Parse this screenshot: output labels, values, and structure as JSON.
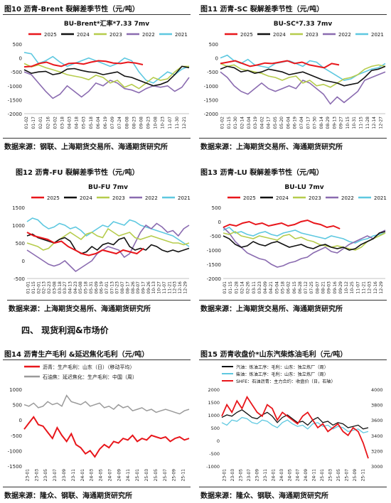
{
  "section_heading": "四、   现货利润&市场价",
  "panels": [
    {
      "title": "图10   沥青-Brent 裂解差季节性（元/吨）",
      "source": "数据来源：钢联、上海期货交易所、海通期货研究所"
    },
    {
      "title": "图11   沥青-SC 裂解差季节性（元/吨）",
      "source": "数据来源：上海期货交易所、海通期货研究所"
    },
    {
      "title": "图12   沥青-FU 裂解差季节性（元/吨）",
      "source": "数据来源：上海期货交易所、海通期货研究所"
    },
    {
      "title": "图13   沥青-LU 裂解差季节性（元/吨）",
      "source": "数据来源：上海期货交易所、海通期货研究所"
    },
    {
      "title": "图14   沥青生产毛利 &延迟焦化毛利（元/吨）",
      "source": "数据来源：隆众、钢联、海通期货研究所"
    },
    {
      "title": "图15   沥青收盘价*山东汽柴炼油毛利（元/吨）",
      "source": "数据来源：隆众、钢联、海通期货研究所"
    }
  ],
  "colors": {
    "2025": "#e8161b",
    "2024": "#111111",
    "2023": "#b6cc4c",
    "2022": "#8a6bb0",
    "2021": "#5ec8e0",
    "gray": "#9a9a9a"
  },
  "chart_data": [
    {
      "type": "line",
      "title": "BU-Brent*汇率*7.33 7mv",
      "ylim": [
        -2000,
        500
      ],
      "yticks": [
        500,
        0,
        -500,
        -1000,
        -1500,
        -2000
      ],
      "xticks": [
        "01-02",
        "01-17",
        "02-01",
        "02-16",
        "03-02",
        "03-18",
        "04-03",
        "04-18",
        "05-03",
        "05-18",
        "06-04",
        "06-19",
        "07-09",
        "07-24",
        "08-08",
        "08-23",
        "09-08",
        "09-23",
        "10-08",
        "10-23",
        "11-07",
        "11-30",
        "12-21"
      ],
      "series": [
        {
          "name": "2025",
          "values": [
            -320,
            -300,
            -200,
            -150,
            -250,
            -300,
            -200,
            -180,
            -220,
            -150,
            -100,
            -120,
            -180,
            -200,
            -150,
            -180,
            -240
          ]
        },
        {
          "name": "2024",
          "values": [
            -420,
            -550,
            -500,
            -480,
            -600,
            -550,
            -400,
            -380,
            -450,
            -500,
            -520,
            -600,
            -550,
            -500,
            -650,
            -700,
            -800,
            -900,
            -1000,
            -950,
            -850,
            -600,
            -300,
            -350
          ]
        },
        {
          "name": "2023",
          "values": [
            -200,
            -320,
            -250,
            -350,
            -420,
            -500,
            -600,
            -650,
            -700,
            -780,
            -620,
            -700,
            -900,
            -800,
            -1050,
            -950,
            -1100,
            -900,
            -700,
            -800,
            -750,
            -500,
            -300,
            -300
          ]
        },
        {
          "name": "2022",
          "values": [
            -500,
            -600,
            -900,
            -1200,
            -1450,
            -1300,
            -1000,
            -1200,
            -1400,
            -1200,
            -900,
            -1000,
            -800,
            -900,
            -1100,
            -1150,
            -1250,
            -1100,
            -1000,
            -1050,
            -1000,
            -1200,
            -1050,
            -700
          ]
        },
        {
          "name": "2021",
          "values": [
            200,
            150,
            -200,
            -100,
            50,
            -150,
            -300,
            -200,
            -100,
            0,
            -100,
            -200,
            -300,
            -200,
            0,
            -100,
            -500,
            -800,
            -900,
            -700,
            -500,
            -600,
            -400,
            -300
          ]
        }
      ]
    },
    {
      "type": "line",
      "title": "BU-SC*7.33 7mv",
      "ylim": [
        -2000,
        500
      ],
      "yticks": [
        500,
        0,
        -500,
        -1000,
        -1500,
        -2000
      ],
      "xticks": [
        "01-02",
        "01-15",
        "01-30",
        "02-14",
        "03-04",
        "03-19",
        "04-02",
        "04-17",
        "05-05",
        "05-20",
        "06-04",
        "06-19",
        "07-04",
        "07-17",
        "07-30",
        "08-14",
        "08-29",
        "09-13",
        "09-27",
        "10-15",
        "10-31",
        "11-15",
        "11-28",
        "12-14",
        "12-27"
      ],
      "series": [
        {
          "name": "2025",
          "values": [
            -200,
            -150,
            -100,
            -200,
            -300,
            -250,
            -180,
            -200,
            -150,
            -100,
            -200,
            -150,
            -250,
            -300,
            -350,
            -200,
            -250
          ]
        },
        {
          "name": "2024",
          "values": [
            -400,
            -300,
            -350,
            -500,
            -450,
            -550,
            -500,
            -400,
            -450,
            -500,
            -600,
            -550,
            -500,
            -600,
            -700,
            -800,
            -850,
            -900,
            -1000,
            -950,
            -900,
            -700,
            -450,
            -400,
            -300
          ]
        },
        {
          "name": "2023",
          "values": [
            -200,
            -300,
            -250,
            -400,
            -450,
            -500,
            -550,
            -650,
            -700,
            -800,
            -700,
            -650,
            -900,
            -800,
            -1000,
            -950,
            -1050,
            -900,
            -750,
            -700,
            -600,
            -400,
            -300,
            -250,
            -300
          ]
        },
        {
          "name": "2022",
          "values": [
            -500,
            -700,
            -1000,
            -1200,
            -1300,
            -1100,
            -900,
            -1100,
            -1200,
            -1100,
            -1000,
            -1100,
            -800,
            -900,
            -1100,
            -1300,
            -1650,
            -1400,
            -1600,
            -1400,
            -1200,
            -800,
            -700,
            -600,
            -500
          ]
        },
        {
          "name": "2021",
          "values": [
            0,
            100,
            -100,
            -200,
            -50,
            -250,
            -300,
            -350,
            -200,
            -150,
            -100,
            -200,
            -300,
            -100,
            -150,
            -350,
            -500,
            -650,
            -800,
            -750,
            -600,
            -500,
            -400,
            -350,
            -200
          ]
        }
      ]
    },
    {
      "type": "line",
      "title": "BU-FU 7mv",
      "ylim": [
        -500,
        1500
      ],
      "yticks": [
        1500,
        1000,
        500,
        0,
        -500
      ],
      "xticks": [
        "01-01",
        "01-15",
        "02-01",
        "02-13",
        "02-23",
        "03-08",
        "03-18",
        "03-27",
        "04-13",
        "04-23",
        "05-08",
        "05-18",
        "05-31",
        "06-09",
        "06-19",
        "07-01",
        "07-13",
        "07-23",
        "08-07",
        "08-17",
        "08-26",
        "09-07",
        "09-17",
        "09-26",
        "10-13",
        "10-27",
        "11-07",
        "11-21",
        "12-03",
        "12-16",
        "12-29"
      ],
      "series": [
        {
          "name": "2025",
          "values": [
            800,
            700,
            650,
            600,
            500,
            550,
            400,
            300,
            200,
            150,
            200,
            300,
            250,
            200,
            300,
            250,
            200,
            350
          ]
        },
        {
          "name": "2024",
          "values": [
            700,
            750,
            650,
            600,
            550,
            500,
            600,
            650,
            550,
            300,
            200,
            250,
            400,
            300,
            450,
            500,
            450,
            600,
            650,
            400,
            300,
            350,
            300,
            450,
            400,
            300,
            250,
            300,
            250,
            300,
            350
          ]
        },
        {
          "name": "2023",
          "values": [
            500,
            450,
            400,
            300,
            350,
            500,
            600,
            700,
            800,
            700,
            600,
            750,
            800,
            700,
            650,
            900,
            800,
            700,
            750,
            800,
            650,
            600,
            650,
            700,
            650,
            600,
            550,
            500,
            500,
            450,
            500
          ]
        },
        {
          "name": "2022",
          "values": [
            300,
            200,
            100,
            0,
            -100,
            -150,
            -100,
            0,
            -150,
            -300,
            -200,
            -100,
            0,
            200,
            300,
            400,
            350,
            300,
            100,
            200,
            500,
            800,
            1000,
            900,
            1050,
            950,
            800,
            850,
            700,
            900,
            1000
          ]
        },
        {
          "name": "2021",
          "values": [
            1100,
            1200,
            1150,
            1000,
            900,
            950,
            1050,
            1000,
            900,
            950,
            850,
            700,
            800,
            900,
            1000,
            950,
            1100,
            1050,
            1000,
            1150,
            1100,
            1000,
            950,
            900,
            850,
            800,
            750,
            700,
            600,
            500,
            400
          ]
        }
      ]
    },
    {
      "type": "line",
      "title": "BU-LU 7mv",
      "ylim": [
        -2000,
        500
      ],
      "yticks": [
        500,
        0,
        -500,
        -1000,
        -1500,
        -2000
      ],
      "xticks": [
        "01-01",
        "01-15",
        "01-28",
        "02-14",
        "02-26",
        "03-11",
        "03-23",
        "04-09",
        "04-21",
        "05-04",
        "05-18",
        "06-02",
        "06-15",
        "06-28",
        "07-12",
        "07-25",
        "08-07",
        "08-21",
        "09-03",
        "09-16",
        "09-29",
        "10-12",
        "10-25",
        "11-07",
        "11-21",
        "12-03",
        "12-16",
        "12-29"
      ],
      "series": [
        {
          "name": "2025",
          "values": [
            -200,
            -100,
            -150,
            -50,
            0,
            -100,
            -50,
            -150,
            -100,
            -50,
            -150,
            -100,
            0,
            50,
            -50,
            -100,
            -200,
            -150,
            -250
          ]
        },
        {
          "name": "2024",
          "values": [
            -500,
            -600,
            -800,
            -900,
            -850,
            -700,
            -800,
            -850,
            -750,
            -700,
            -800,
            -900,
            -850,
            -800,
            -900,
            -950,
            -850,
            -800,
            -900,
            -950,
            -900,
            -1000,
            -950,
            -800,
            -700,
            -600,
            -400,
            -350
          ]
        },
        {
          "name": "2023",
          "values": [
            -400,
            -450,
            -350,
            -500,
            -550,
            -600,
            -500,
            -550,
            -600,
            -650,
            -500,
            -450,
            -600,
            -550,
            -650,
            -700,
            -800,
            -850,
            -900,
            -850,
            -900,
            -950,
            -1000,
            -900,
            -700,
            -600,
            -500,
            -400
          ]
        },
        {
          "name": "2022",
          "values": [
            -200,
            -400,
            -700,
            -900,
            -1100,
            -1200,
            -1300,
            -1350,
            -1500,
            -1600,
            -1550,
            -1450,
            -1400,
            -1300,
            -1250,
            -1100,
            -1000,
            -900,
            -1050,
            -1100,
            -950,
            -800,
            -700,
            -600,
            -500,
            -600,
            -400,
            -300
          ]
        },
        {
          "name": "2021",
          "values": [
            -300,
            -200,
            -400,
            -350,
            -450,
            -500,
            -400,
            -350,
            -450,
            -500,
            -400,
            -350,
            -300,
            -400,
            -450,
            -500,
            -550,
            -600,
            -500,
            -550,
            -600,
            -700,
            -750,
            -650,
            -600,
            -500,
            -450,
            -400
          ]
        }
      ]
    },
    {
      "type": "line",
      "ylim": [
        -1500,
        1000
      ],
      "yticks": [
        1000,
        500,
        0,
        -500,
        -1000,
        -1500
      ],
      "xticks": [
        "23-01",
        "23-03",
        "23-05",
        "23-07",
        "23-09",
        "23-11",
        "24-01",
        "24-03",
        "24-05",
        "24-07",
        "24-09",
        "24-11",
        "25-01",
        "25-03",
        "25-05",
        "25-07",
        "25-09",
        "25-11"
      ],
      "legend": [
        {
          "name": "沥青：生产毛利：山东（日）（移动平均）"
        },
        {
          "name": "石油焦：延迟焦化：生产毛利：中国（周）"
        }
      ],
      "series": [
        {
          "values": [
            -300,
            -100,
            100,
            -150,
            -200,
            -400,
            -600,
            -250,
            -500,
            -700,
            -450,
            -800,
            -900,
            -1100,
            -1000,
            -1200,
            -950,
            -800,
            -900,
            -700,
            -750,
            -600,
            -650,
            -500,
            -700,
            -600,
            -650,
            -500,
            -550,
            -600,
            -550,
            -700,
            -600,
            -550,
            -650,
            -600
          ]
        },
        {
          "values": [
            500,
            450,
            550,
            400,
            450,
            600,
            500,
            550,
            450,
            800,
            600,
            550,
            500,
            600,
            450,
            500,
            550,
            400,
            450,
            350,
            500,
            400,
            450,
            300,
            350,
            400,
            300,
            350,
            250,
            300,
            350,
            300,
            250,
            200,
            300,
            350
          ]
        }
      ]
    },
    {
      "type": "line",
      "ylim_left": [
        -1000,
        2000
      ],
      "yticks_left": [
        2000,
        1500,
        1000,
        500,
        0,
        -500,
        -1000
      ],
      "ylim_right": [
        3000,
        4000
      ],
      "yticks_right": [
        4000,
        3800,
        3600,
        3400,
        3200,
        3000
      ],
      "xticks": [
        "23-01",
        "23-03",
        "23-05",
        "23-07",
        "23-09",
        "23-11",
        "24-01",
        "24-03",
        "24-05",
        "24-07",
        "24-09",
        "24-11",
        "25-01",
        "25-03",
        "25-05",
        "25-07",
        "25-09",
        "25-11"
      ],
      "legend": [
        {
          "name": "汽油：炼油工序：毛利：山东：独立炼厂（周）"
        },
        {
          "name": "柴油：炼油工序：毛利：山东：独立炼厂（周）"
        },
        {
          "name": "SHFE：石油沥青：主力合约：收盘价（日，右轴）"
        }
      ],
      "series": [
        {
          "axis": "left",
          "values": [
            900,
            1000,
            950,
            1100,
            1200,
            1050,
            900,
            850,
            1000,
            1100,
            950,
            700,
            900,
            1000,
            850,
            700,
            750,
            600,
            800,
            900,
            700,
            750,
            600,
            700,
            650,
            500,
            550,
            600,
            450,
            500
          ]
        },
        {
          "axis": "left",
          "values": [
            700,
            600,
            800,
            750,
            900,
            850,
            700,
            650,
            800,
            750,
            600,
            500,
            700,
            800,
            650,
            550,
            600,
            450,
            650,
            700,
            550,
            600,
            450,
            550,
            500,
            350,
            400,
            450,
            300,
            350
          ]
        },
        {
          "axis": "right",
          "values": [
            3650,
            3800,
            3700,
            3850,
            3750,
            3900,
            3800,
            3700,
            3650,
            3800,
            3750,
            3600,
            3700,
            3650,
            3600,
            3550,
            3650,
            3700,
            3600,
            3500,
            3550,
            3450,
            3500,
            3550,
            3450,
            3400,
            3500,
            3450,
            3300,
            3100
          ]
        }
      ]
    }
  ]
}
